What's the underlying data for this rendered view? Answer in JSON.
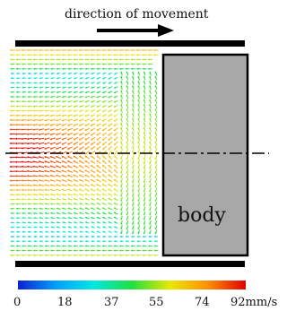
{
  "title": "direction of movement",
  "body_label": "body",
  "colorbar": {
    "tick_labels": [
      "0",
      "18",
      "37",
      "55",
      "74",
      "92mm/s"
    ],
    "min": 0,
    "max": 92,
    "unit": "mm/s",
    "colors": [
      "#1020d0",
      "#00a0ff",
      "#00e8e0",
      "#20e040",
      "#e8e800",
      "#ff9000",
      "#e00000"
    ]
  },
  "colors": {
    "wall": "#000000",
    "body_fill": "#a8a8a8",
    "centerline": "#000000"
  }
}
